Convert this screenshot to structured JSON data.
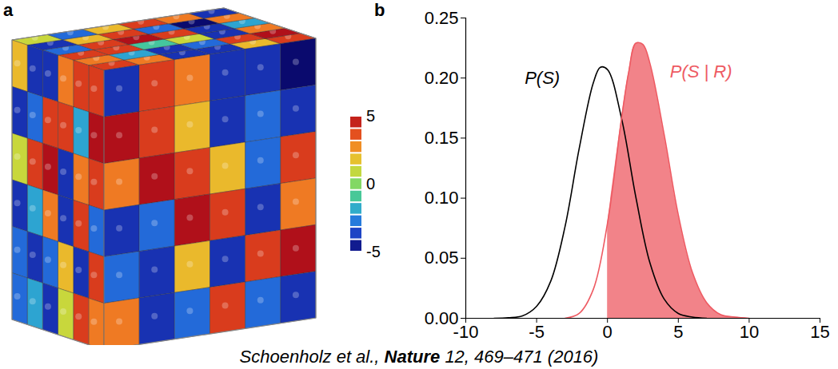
{
  "chart_data": [
    {
      "type": "cube",
      "panel": "a",
      "faces": {
        "top": [
          [
            4,
            3,
            -4,
            -4,
            2,
            4
          ],
          [
            3,
            -2,
            -4,
            -3,
            4,
            5
          ],
          [
            4,
            4,
            -1,
            1,
            -4,
            3
          ],
          [
            -3,
            4,
            5,
            4,
            -4,
            -2
          ],
          [
            -4,
            2,
            4,
            -3,
            -5,
            3
          ],
          [
            1,
            -3,
            2,
            4,
            3,
            -4
          ]
        ],
        "left": [
          [
            4,
            4,
            3,
            -4,
            -4,
            2
          ],
          [
            5,
            -2,
            4,
            4,
            -3,
            -4
          ],
          [
            4,
            3,
            -4,
            5,
            4,
            1
          ],
          [
            -3,
            4,
            -4,
            3,
            -2,
            -4
          ],
          [
            4,
            -4,
            2,
            -3,
            -4,
            -3
          ],
          [
            3,
            4,
            1,
            -4,
            -2,
            -3
          ]
        ],
        "right": [
          [
            -4,
            4,
            3,
            -4,
            -4,
            -5
          ],
          [
            5,
            4,
            2,
            -4,
            -3,
            -4
          ],
          [
            3,
            5,
            4,
            2,
            -3,
            4
          ],
          [
            -4,
            -3,
            5,
            4,
            -4,
            3
          ],
          [
            -3,
            -4,
            2,
            -4,
            4,
            5
          ],
          [
            3,
            -4,
            -3,
            4,
            -3,
            -4
          ]
        ]
      },
      "colorbar": {
        "range": [
          -5,
          5
        ],
        "ticks": [
          5,
          0,
          -5
        ]
      }
    },
    {
      "type": "line",
      "panel": "b",
      "xlim": [
        -10,
        15
      ],
      "xticks": [
        -10,
        -5,
        0,
        5,
        10,
        15
      ],
      "ylim": [
        0,
        0.25
      ],
      "yticks": [
        {
          "value": 0,
          "label": "0.00"
        },
        {
          "value": 0.05,
          "label": "0.05"
        },
        {
          "value": 0.1,
          "label": "0.10"
        },
        {
          "value": 0.15,
          "label": "0.15"
        },
        {
          "value": 0.2,
          "label": "0.20"
        },
        {
          "value": 0.25,
          "label": "0.25"
        }
      ],
      "series": [
        {
          "name": "P(S)",
          "color": "#000000",
          "x": [
            -8,
            -7,
            -6,
            -5,
            -4,
            -3,
            -2,
            -1,
            -0.5,
            0,
            1,
            2,
            3,
            4,
            5,
            6,
            7
          ],
          "values": [
            0.0,
            0.0004,
            0.002,
            0.01,
            0.031,
            0.076,
            0.141,
            0.196,
            0.209,
            0.207,
            0.166,
            0.101,
            0.046,
            0.016,
            0.004,
            0.001,
            0.0
          ],
          "label_x": -4.6,
          "label_y": 0.2
        },
        {
          "name": "P(S | R)",
          "color": "#ee5a62",
          "x": [
            -3,
            -2,
            -1,
            0,
            1,
            1.5,
            2,
            2.5,
            3,
            4,
            5,
            6,
            7,
            8,
            9,
            10
          ],
          "values": [
            0.0,
            0.004,
            0.024,
            0.079,
            0.167,
            0.205,
            0.229,
            0.228,
            0.212,
            0.153,
            0.086,
            0.038,
            0.013,
            0.003,
            0.001,
            0.0
          ],
          "shaded_from": 0,
          "label_x": 6.6,
          "label_y": 0.205
        }
      ]
    }
  ],
  "caption": [
    {
      "text": "Schoenholz et al., "
    },
    {
      "text": "Nature",
      "bold": true
    },
    {
      "text": " 12, 469–471 (2016)"
    }
  ]
}
